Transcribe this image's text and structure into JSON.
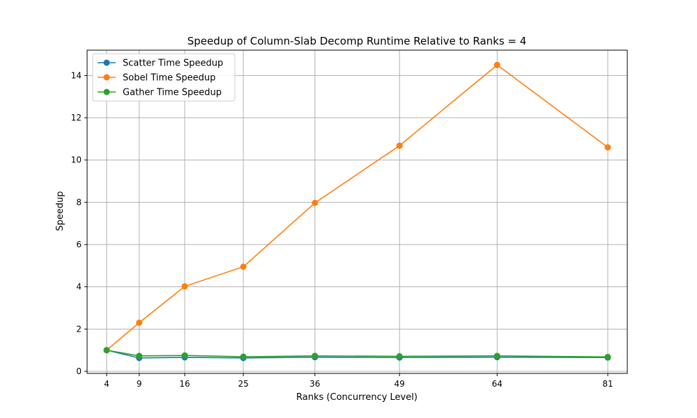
{
  "chart_data": {
    "type": "line",
    "title": "Speedup of Column-Slab Decomp Runtime Relative to Ranks = 4",
    "xlabel": "Ranks (Concurrency Level)",
    "ylabel": "Speedup",
    "x": [
      4,
      9,
      16,
      25,
      36,
      49,
      64,
      81
    ],
    "x_ticks": [
      "4",
      "9",
      "16",
      "25",
      "36",
      "49",
      "64",
      "81"
    ],
    "y_ticks": [
      "0",
      "2",
      "4",
      "6",
      "8",
      "10",
      "12",
      "14"
    ],
    "xlim": [
      1,
      84
    ],
    "ylim": [
      -0.1,
      15.2
    ],
    "grid": true,
    "legend_position": "top-left",
    "series": [
      {
        "name": "Scatter Time Speedup",
        "color": "#1f77b4",
        "values": [
          1.0,
          0.63,
          0.66,
          0.63,
          0.67,
          0.65,
          0.67,
          0.65
        ]
      },
      {
        "name": "Sobel Time Speedup",
        "color": "#ff7f0e",
        "values": [
          1.0,
          2.3,
          4.02,
          4.95,
          7.97,
          10.68,
          14.5,
          10.6
        ]
      },
      {
        "name": "Gather Time Speedup",
        "color": "#2ca02c",
        "values": [
          1.0,
          0.73,
          0.75,
          0.69,
          0.73,
          0.71,
          0.73,
          0.68
        ]
      }
    ]
  }
}
